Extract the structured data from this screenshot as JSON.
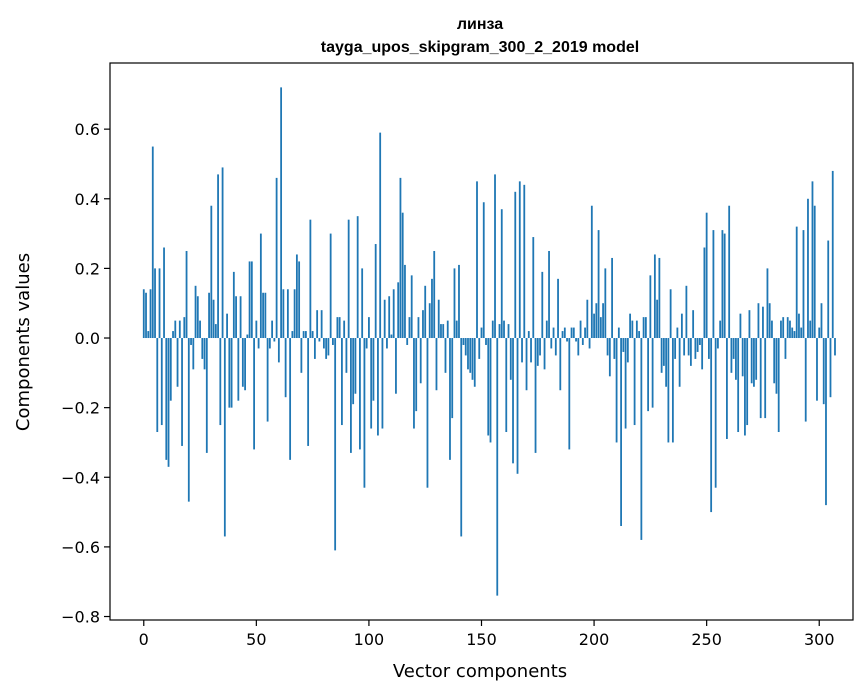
{
  "chart_data": {
    "type": "bar",
    "title": "линза",
    "subtitle": "tayga_upos_skipgram_300_2_2019 model",
    "xlabel": "Vector components",
    "ylabel": "Components values",
    "xlim": [
      -15,
      315
    ],
    "ylim": [
      -0.81,
      0.79
    ],
    "xticks": [
      0,
      50,
      100,
      150,
      200,
      250,
      300
    ],
    "xtick_labels": [
      "0",
      "50",
      "100",
      "150",
      "200",
      "250",
      "300"
    ],
    "yticks": [
      -0.8,
      -0.6,
      -0.4,
      -0.2,
      0.0,
      0.2,
      0.4,
      0.6
    ],
    "ytick_labels": [
      "−0.8",
      "−0.6",
      "−0.4",
      "−0.2",
      "0.0",
      "0.2",
      "0.4",
      "0.6"
    ],
    "bar_color": "#1f77b4",
    "values": [
      0.14,
      0.13,
      0.02,
      0.14,
      0.55,
      0.2,
      -0.27,
      0.2,
      -0.25,
      0.26,
      -0.35,
      -0.37,
      -0.18,
      0.02,
      0.05,
      -0.14,
      0.05,
      -0.31,
      0.06,
      0.25,
      -0.47,
      -0.02,
      -0.09,
      0.15,
      0.12,
      0.05,
      -0.06,
      -0.09,
      -0.33,
      0.13,
      0.38,
      0.11,
      0.04,
      0.47,
      -0.25,
      0.49,
      -0.57,
      0.07,
      -0.2,
      -0.2,
      0.19,
      0.12,
      -0.18,
      0.12,
      -0.14,
      -0.15,
      0.01,
      0.22,
      0.22,
      -0.32,
      0.05,
      -0.03,
      0.3,
      0.13,
      0.13,
      -0.24,
      -0.03,
      0.05,
      -0.01,
      0.46,
      -0.07,
      0.72,
      0.14,
      -0.17,
      0.14,
      -0.35,
      0.02,
      0.14,
      0.24,
      0.22,
      -0.1,
      0.02,
      0.02,
      -0.31,
      0.34,
      0.02,
      -0.06,
      0.08,
      -0.01,
      0.08,
      -0.03,
      -0.06,
      -0.05,
      0.3,
      -0.02,
      -0.61,
      0.06,
      0.06,
      -0.25,
      0.05,
      -0.1,
      0.34,
      -0.33,
      -0.19,
      -0.16,
      0.35,
      -0.32,
      0.2,
      -0.43,
      -0.03,
      0.06,
      -0.26,
      -0.18,
      0.27,
      -0.28,
      0.59,
      -0.26,
      0.11,
      -0.03,
      0.12,
      0.01,
      0.14,
      -0.16,
      0.16,
      0.46,
      0.36,
      0.21,
      -0.02,
      0.06,
      0.18,
      -0.26,
      -0.21,
      0.06,
      -0.13,
      0.08,
      0.15,
      -0.43,
      0.1,
      0.17,
      0.25,
      -0.15,
      0.11,
      0.04,
      0.04,
      -0.1,
      0.05,
      -0.35,
      -0.23,
      0.2,
      0.05,
      0.21,
      -0.57,
      -0.02,
      -0.05,
      -0.09,
      -0.1,
      -0.12,
      -0.14,
      0.45,
      -0.06,
      0.03,
      0.39,
      -0.02,
      -0.28,
      -0.3,
      0.05,
      0.47,
      -0.74,
      0.04,
      0.37,
      0.05,
      -0.27,
      0.04,
      -0.12,
      -0.36,
      0.42,
      -0.39,
      0.45,
      -0.07,
      0.44,
      -0.15,
      0.02,
      -0.07,
      0.29,
      -0.33,
      -0.08,
      -0.05,
      0.19,
      -0.09,
      0.05,
      0.25,
      -0.03,
      0.03,
      -0.05,
      0.17,
      -0.15,
      0.02,
      0.03,
      -0.01,
      -0.32,
      0.03,
      0.03,
      -0.01,
      -0.05,
      0.05,
      -0.02,
      0.03,
      0.11,
      -0.03,
      0.38,
      0.07,
      0.1,
      0.31,
      0.06,
      0.1,
      0.2,
      -0.05,
      -0.11,
      0.23,
      -0.06,
      -0.3,
      0.03,
      -0.54,
      -0.04,
      -0.26,
      -0.07,
      0.07,
      0.05,
      -0.25,
      0.05,
      0.02,
      -0.58,
      0.06,
      0.06,
      -0.21,
      0.18,
      -0.2,
      0.24,
      0.11,
      0.23,
      -0.1,
      -0.08,
      -0.14,
      -0.3,
      0.14,
      -0.3,
      -0.06,
      0.03,
      -0.14,
      0.07,
      -0.05,
      0.15,
      -0.05,
      -0.08,
      0.08,
      -0.06,
      -0.04,
      -0.02,
      -0.09,
      0.26,
      0.36,
      -0.06,
      -0.5,
      0.31,
      -0.43,
      -0.03,
      0.05,
      0.31,
      0.3,
      -0.29,
      0.38,
      -0.1,
      -0.06,
      -0.12,
      -0.27,
      0.07,
      -0.11,
      -0.28,
      -0.25,
      0.08,
      -0.13,
      -0.14,
      -0.12,
      0.1,
      -0.23,
      0.09,
      -0.23,
      0.2,
      0.1,
      0.05,
      -0.13,
      -0.16,
      -0.27,
      0.05,
      0.06,
      -0.06,
      0.06,
      0.05,
      0.03,
      0.02,
      0.32,
      0.07,
      0.03,
      0.31,
      -0.24,
      0.4,
      0.05,
      0.45,
      0.38,
      -0.18,
      0.03,
      0.1,
      -0.19,
      -0.48,
      0.28,
      -0.17,
      0.48,
      -0.05
    ]
  }
}
